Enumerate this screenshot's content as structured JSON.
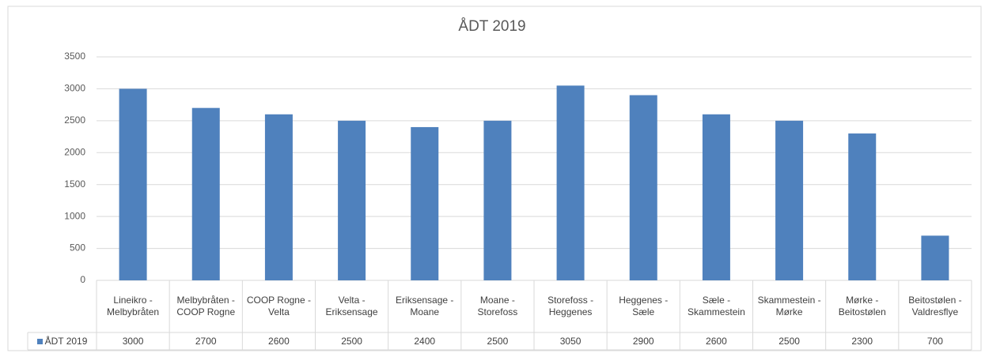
{
  "chart_data": {
    "type": "bar",
    "title": "ÅDT 2019",
    "categories": [
      "Lineikro - Melbybråten",
      "Melbybråten - COOP Rogne",
      "COOP Rogne - Velta",
      "Velta - Eriksensage",
      "Eriksensage - Moane",
      "Moane - Storefoss",
      "Storefoss - Heggenes",
      "Heggenes - Sæle",
      "Sæle - Skammestein",
      "Skammestein - Mørke",
      "Mørke - Beitostølen",
      "Beitostølen - Valdresflye"
    ],
    "series": [
      {
        "name": "ÅDT 2019",
        "color": "#4f81bd",
        "values": [
          3000,
          2700,
          2600,
          2500,
          2400,
          2500,
          3050,
          2900,
          2600,
          2500,
          2300,
          700
        ]
      }
    ],
    "ylim": [
      0,
      3500
    ],
    "yticks": [
      0,
      500,
      1000,
      1500,
      2000,
      2500,
      3000,
      3500
    ],
    "grid": true
  }
}
